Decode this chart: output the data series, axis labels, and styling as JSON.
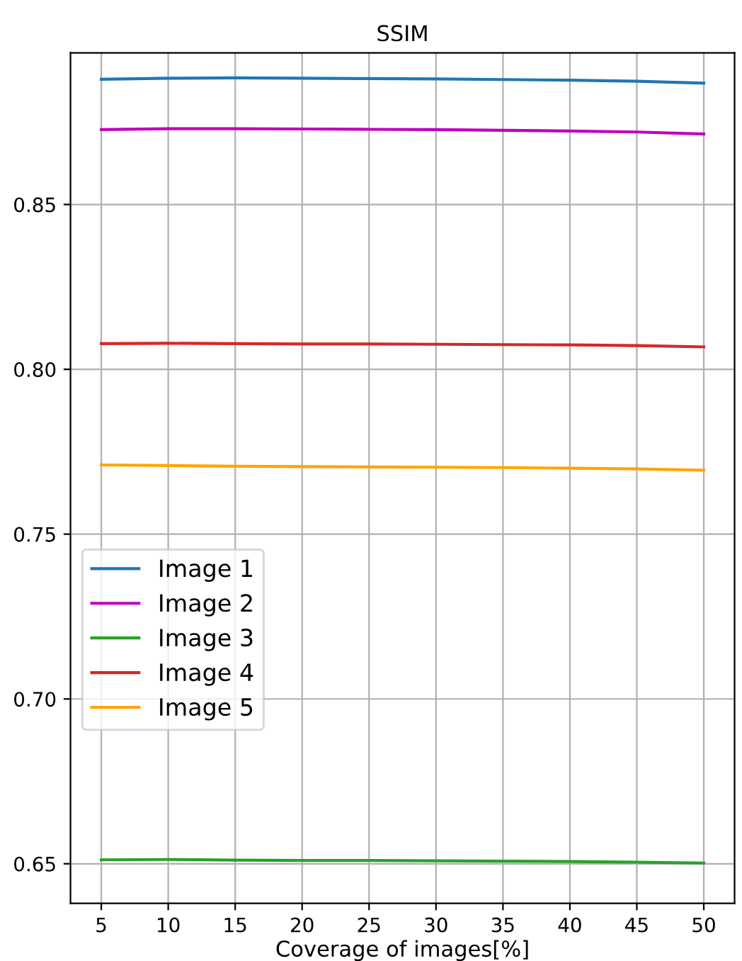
{
  "chart_data": {
    "type": "line",
    "title": "SSIM",
    "xlabel": "Coverage of images[%]",
    "x": [
      5,
      10,
      15,
      20,
      25,
      30,
      35,
      40,
      45,
      50
    ],
    "series": [
      {
        "name": "Image 1",
        "color": "#1f77b4",
        "values": [
          0.888,
          0.8883,
          0.8884,
          0.8883,
          0.8882,
          0.8881,
          0.8879,
          0.8877,
          0.8874,
          0.8868
        ]
      },
      {
        "name": "Image 2",
        "color": "#bf00bf",
        "values": [
          0.8727,
          0.873,
          0.873,
          0.8729,
          0.8728,
          0.8727,
          0.8725,
          0.8723,
          0.872,
          0.8714
        ]
      },
      {
        "name": "Image 3",
        "color": "#2ca02c",
        "values": [
          0.6512,
          0.6513,
          0.6511,
          0.651,
          0.651,
          0.6509,
          0.6508,
          0.6507,
          0.6505,
          0.6502
        ]
      },
      {
        "name": "Image 4",
        "color": "#d62728",
        "values": [
          0.8078,
          0.8079,
          0.8078,
          0.8077,
          0.8077,
          0.8076,
          0.8075,
          0.8074,
          0.8072,
          0.8068
        ]
      },
      {
        "name": "Image 5",
        "color": "#ffa500",
        "values": [
          0.771,
          0.7708,
          0.7706,
          0.7705,
          0.7704,
          0.7703,
          0.7702,
          0.77,
          0.7698,
          0.7694
        ]
      }
    ],
    "xlim": [
      2.7,
      52.3
    ],
    "ylim": [
      0.638,
      0.896
    ],
    "xticks": [
      5,
      10,
      15,
      20,
      25,
      30,
      35,
      40,
      45,
      50
    ],
    "yticks": [
      {
        "value": 0.65,
        "label": "0.65"
      },
      {
        "value": 0.7,
        "label": "0.70"
      },
      {
        "value": 0.75,
        "label": "0.75"
      },
      {
        "value": 0.8,
        "label": "0.80"
      },
      {
        "value": 0.85,
        "label": "0.85"
      }
    ],
    "grid": true,
    "legend": "center left"
  }
}
